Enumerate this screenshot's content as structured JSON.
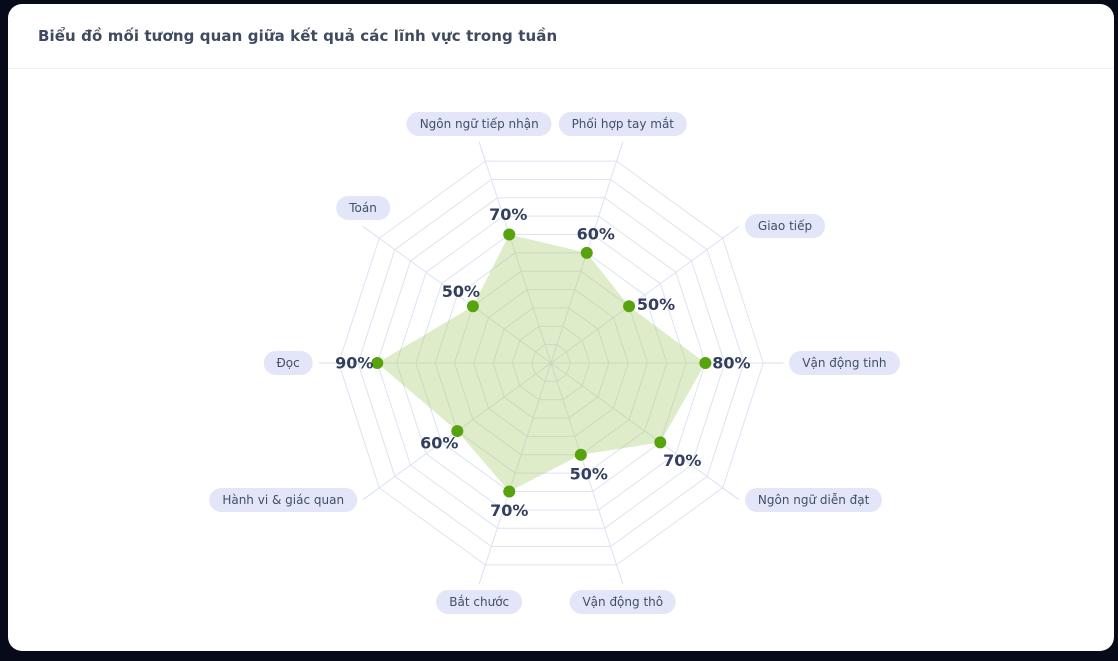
{
  "page": {
    "background": "#070a18",
    "card_background": "#ffffff"
  },
  "header": {
    "title": "Biểu đồ mối tương quan giữa kết quả các lĩnh vực trong tuần"
  },
  "chart_data": {
    "type": "radar",
    "title": "Biểu đồ mối tương quan giữa kết quả các lĩnh vực trong tuần",
    "unit": "%",
    "scale": {
      "min": 0,
      "max": 100,
      "ring_step_percent": 10,
      "rings_total": 11,
      "grid": "spiderweb",
      "legend": "none"
    },
    "axes": [
      {
        "label": "Vận động tinh",
        "value": 80,
        "angle_deg": 0,
        "label_placement": "right",
        "value_label_offset": [
          26,
          0
        ]
      },
      {
        "label": "Giao tiếp",
        "value": 50,
        "angle_deg": 36,
        "label_placement": "right",
        "value_label_offset": [
          27,
          -2
        ]
      },
      {
        "label": "Phối hợp tay mắt",
        "value": 60,
        "angle_deg": 72,
        "label_placement": "above",
        "value_label_offset": [
          9,
          -19
        ]
      },
      {
        "label": "Ngôn ngữ tiếp nhận",
        "value": 70,
        "angle_deg": 108,
        "label_placement": "above",
        "value_label_offset": [
          -1,
          -20
        ]
      },
      {
        "label": "Toán",
        "value": 50,
        "angle_deg": 144,
        "label_placement": "above",
        "value_label_offset": [
          -12,
          -15
        ]
      },
      {
        "label": "Đọc",
        "value": 90,
        "angle_deg": 180,
        "label_placement": "left",
        "value_label_offset": [
          -23,
          0
        ]
      },
      {
        "label": "Hành vi & giác quan",
        "value": 60,
        "angle_deg": 216,
        "label_placement": "left",
        "value_label_offset": [
          -18,
          12
        ]
      },
      {
        "label": "Bắt chước",
        "value": 70,
        "angle_deg": 252,
        "label_placement": "below",
        "value_label_offset": [
          0,
          19
        ]
      },
      {
        "label": "Vận động thô",
        "value": 50,
        "angle_deg": 288,
        "label_placement": "below",
        "value_label_offset": [
          8,
          19
        ]
      },
      {
        "label": "Ngôn ngữ diễn đạt",
        "value": 70,
        "angle_deg": 324,
        "label_placement": "right",
        "value_label_offset": [
          22,
          18
        ]
      }
    ],
    "colors": {
      "fill": "#a4c968",
      "fill_opacity": 0.35,
      "point": "#57a30e",
      "grid_line": "#dde3f2",
      "connector_line": "#d9dff0",
      "value_text": "#333f5c",
      "axis_label_bg": "#e2e6f8",
      "axis_label_text": "#424e68"
    }
  }
}
